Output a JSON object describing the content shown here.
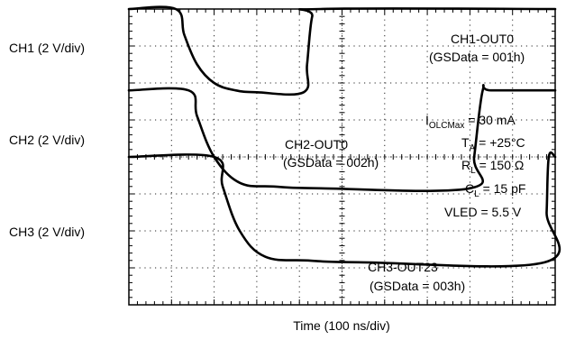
{
  "chart_data": {
    "type": "line",
    "title": "",
    "xlabel": "Time (100 ns/div)",
    "x_divisions": 10,
    "y_divisions": 8,
    "x_unit": "div",
    "channels": [
      {
        "name": "CH1",
        "label": "CH1 (2 V/div)",
        "x": [
          0,
          1.1,
          1.3,
          1.6,
          2.0,
          2.5,
          3.0,
          4.1,
          4.18,
          4.3,
          4.5,
          10
        ],
        "y": [
          8.0,
          8.0,
          7.3,
          6.5,
          6.0,
          5.8,
          5.75,
          5.75,
          6.5,
          7.8,
          8.0,
          8.0
        ]
      },
      {
        "name": "CH2",
        "label": "CH2 (2 V/div)",
        "x": [
          0,
          1.4,
          1.6,
          2.0,
          2.6,
          3.4,
          4.5,
          8.0,
          8.1,
          8.3,
          8.5,
          10
        ],
        "y": [
          5.8,
          5.8,
          5.1,
          4.0,
          3.3,
          3.2,
          3.15,
          3.15,
          4.0,
          5.8,
          5.8,
          5.8
        ]
      },
      {
        "name": "CH3",
        "label": "CH3 (2 V/div)",
        "x": [
          0,
          2.0,
          2.2,
          2.6,
          3.2,
          4.2,
          5.5,
          9.75,
          9.8,
          9.85,
          10
        ],
        "y": [
          4.0,
          4.0,
          3.2,
          2.0,
          1.3,
          1.2,
          1.15,
          1.15,
          2.5,
          4.0,
          4.0
        ]
      }
    ],
    "annotations": {
      "ch1": {
        "line1": "CH1-OUT0",
        "line2": "(GSData = 001h)"
      },
      "ch2": {
        "line1": "CH2-OUT0",
        "line2": "(GSData = 002h)"
      },
      "ch3": {
        "line1": "CH3-OUT23",
        "line2": "(GSData = 003h)"
      },
      "conditions": [
        {
          "main": "I",
          "sub": "OLCMax",
          "rest": " = 30 mA"
        },
        {
          "main": "T",
          "sub": "A",
          "rest": " = +25°C"
        },
        {
          "main": "R",
          "sub": "L",
          "rest": " = 150 Ω"
        },
        {
          "main": "C",
          "sub": "L",
          "rest": " = 15 pF"
        },
        {
          "main": "VLED = 5.5 V",
          "sub": "",
          "rest": ""
        }
      ]
    },
    "grid": "dotted",
    "trace_color": "#000000"
  }
}
